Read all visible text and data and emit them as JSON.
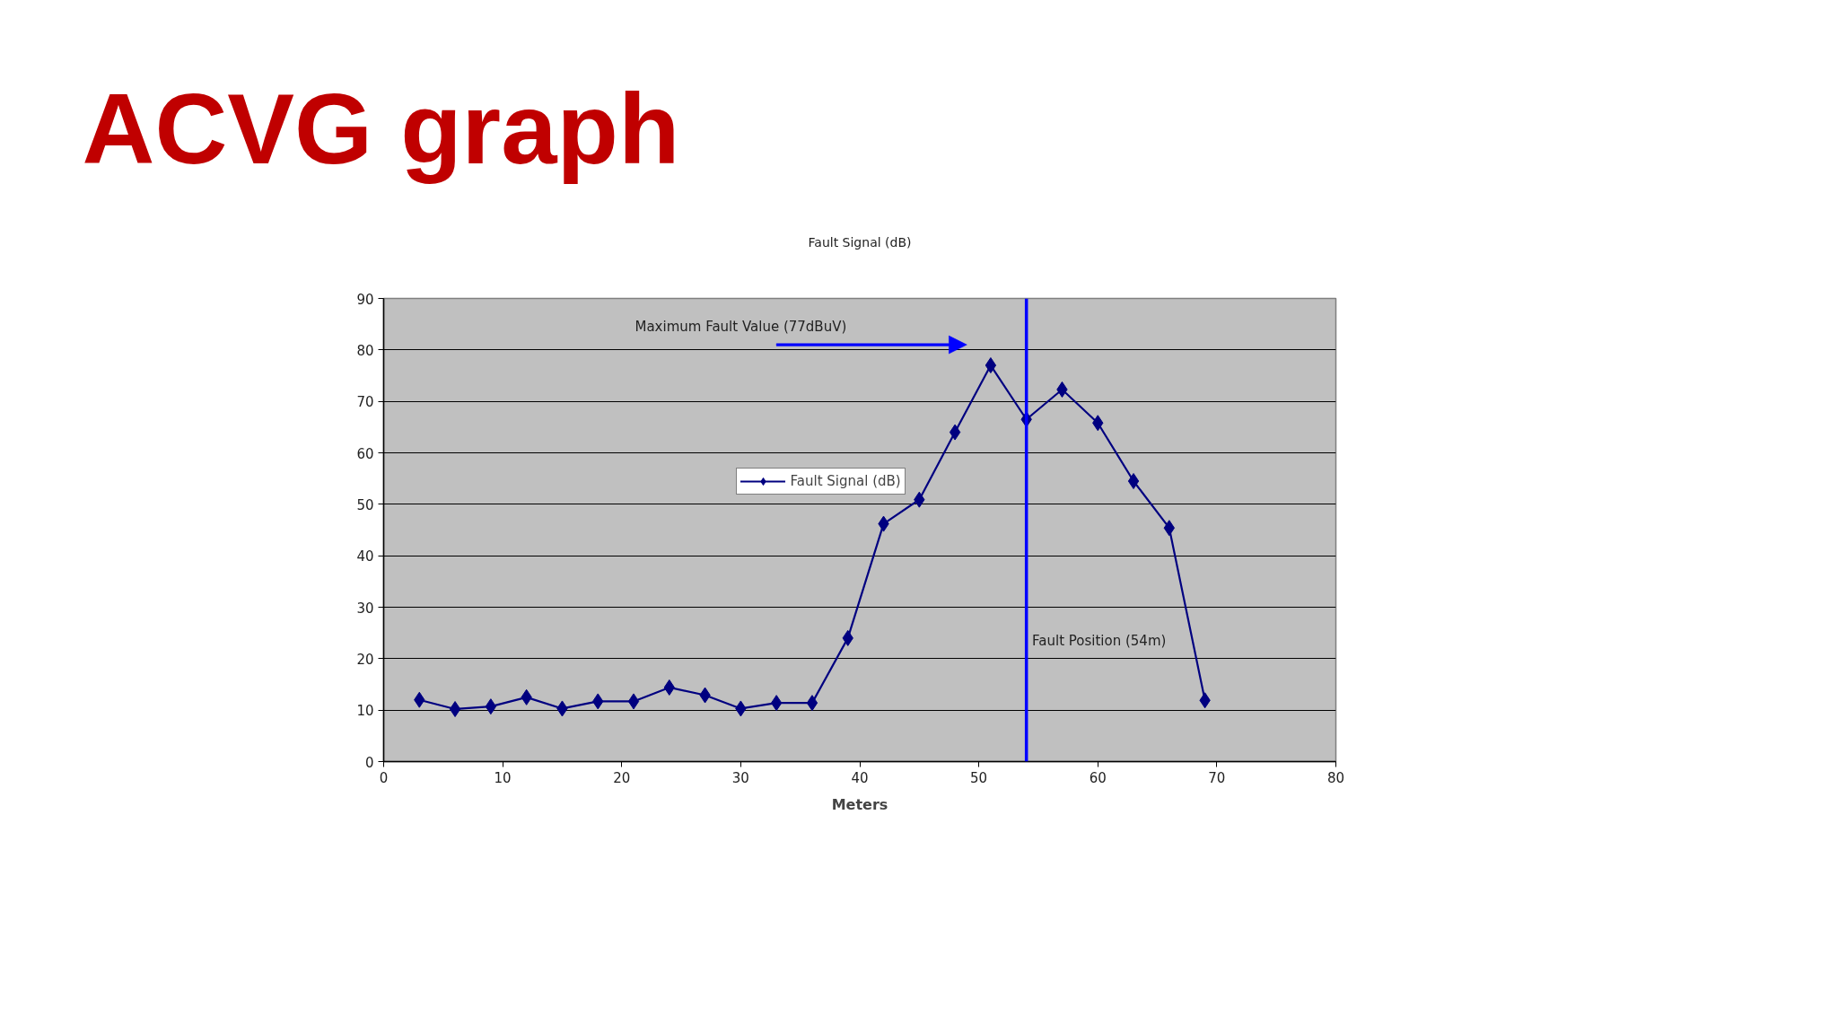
{
  "chart_data": {
    "type": "line",
    "title": "ACVG graph",
    "subtitle": "Fault Signal (dB)",
    "xlabel": "Meters",
    "x": [
      3,
      6,
      9,
      12,
      15,
      18,
      21,
      24,
      27,
      30,
      33,
      36,
      39,
      42,
      45,
      48,
      51,
      54,
      57,
      60,
      63,
      66,
      69
    ],
    "series": [
      {
        "name": "Fault Signal (dB)",
        "color": "#000080",
        "values": [
          12.0,
          10.2,
          10.7,
          12.5,
          10.3,
          11.7,
          11.7,
          14.4,
          12.9,
          10.3,
          11.4,
          11.4,
          24.0,
          46.2,
          50.9,
          64.0,
          77,
          66.5,
          72.3,
          65.8,
          54.5,
          45.4,
          11.9
        ]
      }
    ],
    "xlim": [
      0,
      80
    ],
    "ylim": [
      0,
      90
    ],
    "xticks": [
      0,
      10,
      20,
      30,
      40,
      50,
      60,
      70,
      80
    ],
    "yticks": [
      0,
      10,
      20,
      30,
      40,
      50,
      60,
      70,
      80,
      90
    ],
    "grid": "y",
    "legend": "center",
    "marker": "diamond",
    "line_style": "solid",
    "ref_lines": [
      {
        "axis": "x",
        "value": 54,
        "label": "Fault Position (54m)",
        "color": "#0000ff"
      }
    ],
    "annotations": [
      "Maximum Fault Value (77dBuV)"
    ]
  }
}
